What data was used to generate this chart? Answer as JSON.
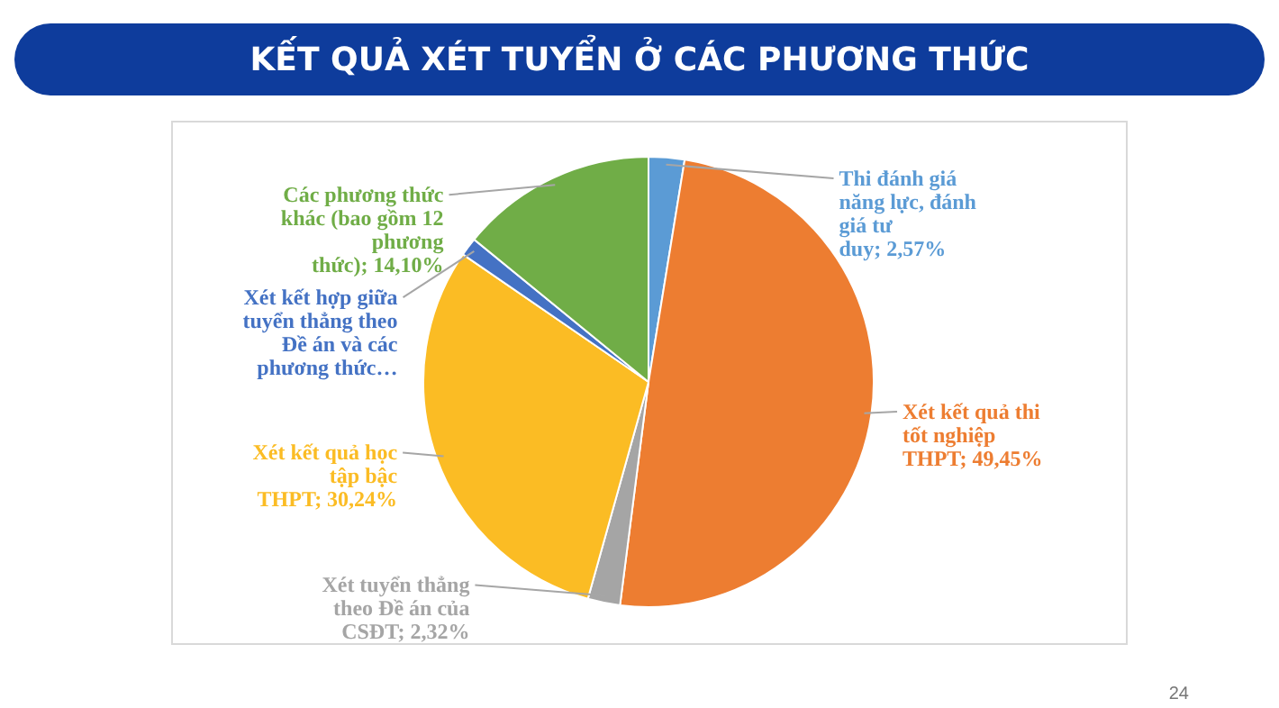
{
  "chart_data": {
    "type": "pie",
    "title": "KẾT QUẢ XÉT TUYỂN Ở CÁC PHƯƠNG THỨC",
    "categories": [
      "Thi đánh giá năng lực, đánh giá tư duy",
      "Xét kết quả thi tốt nghiệp THPT",
      "Xét tuyển thẳng theo Đề án của CSĐT",
      "Xét kết quả học tập bậc THPT",
      "Xét kết hợp giữa tuyển thẳng theo Đề án và các phương thức…",
      "Các phương thức khác (bao gồm 12 phương thức)"
    ],
    "values": [
      2.57,
      49.45,
      2.32,
      30.24,
      1.32,
      14.1
    ],
    "value_labels": [
      "2,57%",
      "49,45%",
      "2,32%",
      "30,24%",
      null,
      "14,10%"
    ],
    "colors": [
      "#5b9bd5",
      "#ed7d31",
      "#a5a5a5",
      "#fbbc24",
      "#4472c4",
      "#70ad47"
    ],
    "annotations": [
      "24"
    ]
  }
}
